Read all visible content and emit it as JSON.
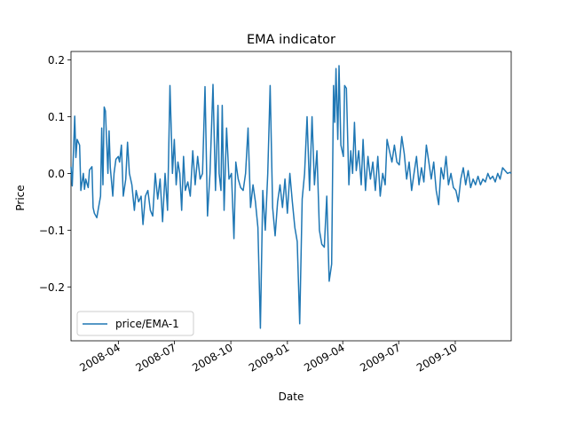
{
  "chart_data": {
    "type": "line",
    "title": "EMA indicator",
    "xlabel": "Date",
    "ylabel": "Price",
    "xlim": [
      "2008-01-15",
      "2009-12-31"
    ],
    "ylim": [
      -0.295,
      0.215
    ],
    "grid": false,
    "legend_position": "lower-left",
    "x_ticks": [
      {
        "date": "2008-04-01",
        "label": "2008-04"
      },
      {
        "date": "2008-07-01",
        "label": "2008-07"
      },
      {
        "date": "2008-10-01",
        "label": "2008-10"
      },
      {
        "date": "2009-01-01",
        "label": "2009-01"
      },
      {
        "date": "2009-04-01",
        "label": "2009-04"
      },
      {
        "date": "2009-07-01",
        "label": "2009-07"
      },
      {
        "date": "2009-10-01",
        "label": "2009-10"
      }
    ],
    "y_ticks": [
      {
        "value": 0.2,
        "label": "0.2"
      },
      {
        "value": 0.1,
        "label": "0.1"
      },
      {
        "value": 0.0,
        "label": "0.0"
      },
      {
        "value": -0.1,
        "label": "−0.1"
      },
      {
        "value": -0.2,
        "label": "−0.2"
      }
    ],
    "series": [
      {
        "name": "price/EMA-1",
        "color": "#1f77b4",
        "points": [
          [
            "2008-01-15",
            0.012
          ],
          [
            "2008-01-17",
            -0.022
          ],
          [
            "2008-01-21",
            0.101
          ],
          [
            "2008-01-23",
            0.028
          ],
          [
            "2008-01-25",
            0.06
          ],
          [
            "2008-01-29",
            0.05
          ],
          [
            "2008-01-31",
            -0.03
          ],
          [
            "2008-02-04",
            0.0
          ],
          [
            "2008-02-06",
            -0.028
          ],
          [
            "2008-02-08",
            -0.01
          ],
          [
            "2008-02-12",
            -0.025
          ],
          [
            "2008-02-14",
            0.006
          ],
          [
            "2008-02-18",
            0.012
          ],
          [
            "2008-02-20",
            -0.06
          ],
          [
            "2008-02-22",
            -0.07
          ],
          [
            "2008-02-26",
            -0.078
          ],
          [
            "2008-02-28",
            -0.065
          ],
          [
            "2008-03-03",
            -0.04
          ],
          [
            "2008-03-05",
            0.08
          ],
          [
            "2008-03-07",
            -0.02
          ],
          [
            "2008-03-09",
            0.117
          ],
          [
            "2008-03-11",
            0.11
          ],
          [
            "2008-03-15",
            0.0
          ],
          [
            "2008-03-17",
            0.075
          ],
          [
            "2008-03-19",
            0.01
          ],
          [
            "2008-03-23",
            -0.04
          ],
          [
            "2008-03-25",
            0.0
          ],
          [
            "2008-03-28",
            0.025
          ],
          [
            "2008-04-01",
            0.03
          ],
          [
            "2008-04-03",
            0.02
          ],
          [
            "2008-04-06",
            0.05
          ],
          [
            "2008-04-09",
            -0.04
          ],
          [
            "2008-04-13",
            -0.01
          ],
          [
            "2008-04-16",
            0.055
          ],
          [
            "2008-04-19",
            0.0
          ],
          [
            "2008-04-23",
            -0.02
          ],
          [
            "2008-04-27",
            -0.065
          ],
          [
            "2008-04-30",
            -0.03
          ],
          [
            "2008-05-04",
            -0.05
          ],
          [
            "2008-05-08",
            -0.04
          ],
          [
            "2008-05-11",
            -0.09
          ],
          [
            "2008-05-15",
            -0.04
          ],
          [
            "2008-05-19",
            -0.03
          ],
          [
            "2008-05-23",
            -0.065
          ],
          [
            "2008-05-27",
            -0.075
          ],
          [
            "2008-05-31",
            0.0
          ],
          [
            "2008-06-04",
            -0.045
          ],
          [
            "2008-06-08",
            -0.01
          ],
          [
            "2008-06-12",
            -0.085
          ],
          [
            "2008-06-16",
            0.0
          ],
          [
            "2008-06-20",
            -0.065
          ],
          [
            "2008-06-24",
            0.155
          ],
          [
            "2008-06-26",
            0.08
          ],
          [
            "2008-06-28",
            0.0
          ],
          [
            "2008-07-01",
            0.06
          ],
          [
            "2008-07-04",
            -0.02
          ],
          [
            "2008-07-07",
            0.02
          ],
          [
            "2008-07-10",
            0.0
          ],
          [
            "2008-07-13",
            -0.065
          ],
          [
            "2008-07-16",
            0.03
          ],
          [
            "2008-07-19",
            -0.03
          ],
          [
            "2008-07-23",
            -0.015
          ],
          [
            "2008-07-27",
            -0.04
          ],
          [
            "2008-07-31",
            0.04
          ],
          [
            "2008-08-04",
            -0.02
          ],
          [
            "2008-08-08",
            0.03
          ],
          [
            "2008-08-12",
            -0.01
          ],
          [
            "2008-08-16",
            0.0
          ],
          [
            "2008-08-20",
            0.153
          ],
          [
            "2008-08-24",
            -0.075
          ],
          [
            "2008-08-28",
            0.0
          ],
          [
            "2008-09-02",
            0.157
          ],
          [
            "2008-09-06",
            -0.03
          ],
          [
            "2008-09-10",
            0.12
          ],
          [
            "2008-09-12",
            0.0
          ],
          [
            "2008-09-15",
            -0.03
          ],
          [
            "2008-09-17",
            0.12
          ],
          [
            "2008-09-20",
            -0.065
          ],
          [
            "2008-09-24",
            0.08
          ],
          [
            "2008-09-28",
            -0.01
          ],
          [
            "2008-10-02",
            0.0
          ],
          [
            "2008-10-06",
            -0.115
          ],
          [
            "2008-10-09",
            0.02
          ],
          [
            "2008-10-13",
            -0.01
          ],
          [
            "2008-10-17",
            -0.025
          ],
          [
            "2008-10-21",
            -0.03
          ],
          [
            "2008-10-25",
            0.0
          ],
          [
            "2008-10-29",
            0.08
          ],
          [
            "2008-11-02",
            -0.06
          ],
          [
            "2008-11-06",
            -0.02
          ],
          [
            "2008-11-10",
            -0.05
          ],
          [
            "2008-11-14",
            -0.095
          ],
          [
            "2008-11-18",
            -0.273
          ],
          [
            "2008-11-22",
            -0.03
          ],
          [
            "2008-11-26",
            -0.1
          ],
          [
            "2008-11-30",
            0.0
          ],
          [
            "2008-12-04",
            0.155
          ],
          [
            "2008-12-08",
            -0.06
          ],
          [
            "2008-12-12",
            -0.11
          ],
          [
            "2008-12-16",
            -0.05
          ],
          [
            "2008-12-20",
            -0.02
          ],
          [
            "2008-12-24",
            -0.06
          ],
          [
            "2008-12-28",
            -0.01
          ],
          [
            "2009-01-01",
            -0.07
          ],
          [
            "2009-01-05",
            0.0
          ],
          [
            "2009-01-09",
            -0.05
          ],
          [
            "2009-01-13",
            -0.095
          ],
          [
            "2009-01-17",
            -0.12
          ],
          [
            "2009-01-21",
            -0.265
          ],
          [
            "2009-01-25",
            -0.045
          ],
          [
            "2009-01-29",
            0.0
          ],
          [
            "2009-02-02",
            0.1
          ],
          [
            "2009-02-06",
            -0.03
          ],
          [
            "2009-02-10",
            0.1
          ],
          [
            "2009-02-14",
            -0.02
          ],
          [
            "2009-02-18",
            0.04
          ],
          [
            "2009-02-22",
            -0.1
          ],
          [
            "2009-02-26",
            -0.125
          ],
          [
            "2009-03-02",
            -0.13
          ],
          [
            "2009-03-06",
            -0.04
          ],
          [
            "2009-03-10",
            -0.19
          ],
          [
            "2009-03-14",
            -0.16
          ],
          [
            "2009-03-17",
            0.155
          ],
          [
            "2009-03-19",
            0.09
          ],
          [
            "2009-03-21",
            0.185
          ],
          [
            "2009-03-24",
            0.06
          ],
          [
            "2009-03-26",
            0.19
          ],
          [
            "2009-03-29",
            0.05
          ],
          [
            "2009-04-02",
            0.03
          ],
          [
            "2009-04-04",
            0.155
          ],
          [
            "2009-04-07",
            0.15
          ],
          [
            "2009-04-11",
            -0.02
          ],
          [
            "2009-04-14",
            0.04
          ],
          [
            "2009-04-17",
            0.0
          ],
          [
            "2009-04-20",
            0.09
          ],
          [
            "2009-04-23",
            0.005
          ],
          [
            "2009-04-27",
            0.04
          ],
          [
            "2009-05-01",
            -0.02
          ],
          [
            "2009-05-04",
            0.06
          ],
          [
            "2009-05-08",
            -0.03
          ],
          [
            "2009-05-12",
            0.03
          ],
          [
            "2009-05-16",
            -0.01
          ],
          [
            "2009-05-20",
            0.02
          ],
          [
            "2009-05-24",
            -0.03
          ],
          [
            "2009-05-28",
            0.03
          ],
          [
            "2009-06-01",
            -0.04
          ],
          [
            "2009-06-05",
            0.0
          ],
          [
            "2009-06-09",
            -0.02
          ],
          [
            "2009-06-12",
            0.06
          ],
          [
            "2009-06-16",
            0.04
          ],
          [
            "2009-06-20",
            0.02
          ],
          [
            "2009-06-24",
            0.05
          ],
          [
            "2009-06-28",
            0.02
          ],
          [
            "2009-07-02",
            0.015
          ],
          [
            "2009-07-06",
            0.065
          ],
          [
            "2009-07-10",
            0.035
          ],
          [
            "2009-07-14",
            -0.01
          ],
          [
            "2009-07-18",
            0.02
          ],
          [
            "2009-07-22",
            -0.03
          ],
          [
            "2009-07-26",
            0.0
          ],
          [
            "2009-07-30",
            0.03
          ],
          [
            "2009-08-03",
            -0.02
          ],
          [
            "2009-08-07",
            0.01
          ],
          [
            "2009-08-11",
            -0.015
          ],
          [
            "2009-08-15",
            0.05
          ],
          [
            "2009-08-19",
            0.02
          ],
          [
            "2009-08-23",
            -0.01
          ],
          [
            "2009-08-27",
            0.02
          ],
          [
            "2009-08-31",
            -0.03
          ],
          [
            "2009-09-04",
            -0.055
          ],
          [
            "2009-09-08",
            0.01
          ],
          [
            "2009-09-12",
            -0.01
          ],
          [
            "2009-09-16",
            0.03
          ],
          [
            "2009-09-20",
            -0.02
          ],
          [
            "2009-09-24",
            0.0
          ],
          [
            "2009-09-28",
            -0.025
          ],
          [
            "2009-10-02",
            -0.03
          ],
          [
            "2009-10-06",
            -0.05
          ],
          [
            "2009-10-10",
            -0.01
          ],
          [
            "2009-10-14",
            0.01
          ],
          [
            "2009-10-18",
            -0.02
          ],
          [
            "2009-10-22",
            0.005
          ],
          [
            "2009-10-26",
            -0.025
          ],
          [
            "2009-10-30",
            -0.01
          ],
          [
            "2009-11-03",
            -0.02
          ],
          [
            "2009-11-07",
            -0.005
          ],
          [
            "2009-11-11",
            -0.02
          ],
          [
            "2009-11-15",
            -0.01
          ],
          [
            "2009-11-19",
            -0.015
          ],
          [
            "2009-11-23",
            0.0
          ],
          [
            "2009-11-27",
            -0.01
          ],
          [
            "2009-12-01",
            -0.005
          ],
          [
            "2009-12-05",
            -0.015
          ],
          [
            "2009-12-09",
            0.0
          ],
          [
            "2009-12-13",
            -0.01
          ],
          [
            "2009-12-17",
            0.01
          ],
          [
            "2009-12-21",
            0.005
          ],
          [
            "2009-12-25",
            0.0
          ],
          [
            "2009-12-29",
            0.002
          ],
          [
            "2009-12-31",
            0.0
          ]
        ]
      }
    ]
  }
}
